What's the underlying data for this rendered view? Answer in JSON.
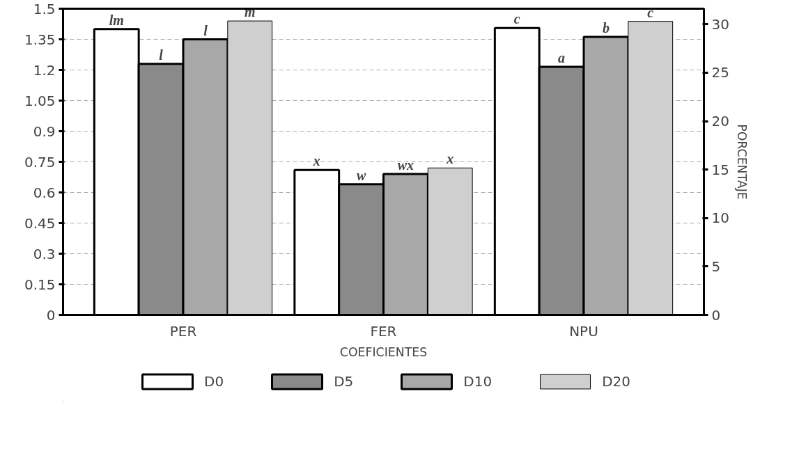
{
  "chart_data": {
    "type": "bar",
    "xlabel": "COEFICIENTES",
    "y2label": "PORCENTAJE",
    "categories": [
      "PER",
      "FER",
      "NPU"
    ],
    "series": [
      {
        "name": "D0",
        "color": "#ffffff",
        "values": [
          1.4,
          0.71,
          null
        ]
      },
      {
        "name": "D5",
        "color": "#8a8a8a",
        "values": [
          1.23,
          0.64,
          null
        ]
      },
      {
        "name": "D10",
        "color": "#a8a8a8",
        "values": [
          1.35,
          0.69,
          null
        ]
      },
      {
        "name": "D20",
        "color": "#cfcfcf",
        "values": [
          1.44,
          0.72,
          null
        ]
      },
      {
        "color": "#ffffff",
        "axis": "y2",
        "values": [
          null,
          null,
          29.6
        ]
      },
      {
        "color": "#8a8a8a",
        "axis": "y2",
        "values": [
          null,
          null,
          25.6
        ]
      },
      {
        "color": "#a8a8a8",
        "axis": "y2",
        "values": [
          null,
          null,
          28.7
        ]
      },
      {
        "color": "#cfcfcf",
        "axis": "y2",
        "values": [
          null,
          null,
          30.3
        ]
      }
    ],
    "ylim": [
      0,
      1.5
    ],
    "yticks": [
      0,
      0.15,
      0.3,
      0.45,
      0.6,
      0.75,
      0.9,
      1.05,
      1.2,
      1.35,
      1.5
    ],
    "y2lim": [
      0,
      31.6
    ],
    "y2ticks": [
      0,
      5,
      10,
      15,
      20,
      25,
      30
    ],
    "grid": "y",
    "legend": "bottom",
    "annotations": [
      "lm",
      "l",
      "l",
      "m",
      "x",
      "w",
      "wx",
      "x",
      "c",
      "a",
      "b",
      "c"
    ]
  }
}
